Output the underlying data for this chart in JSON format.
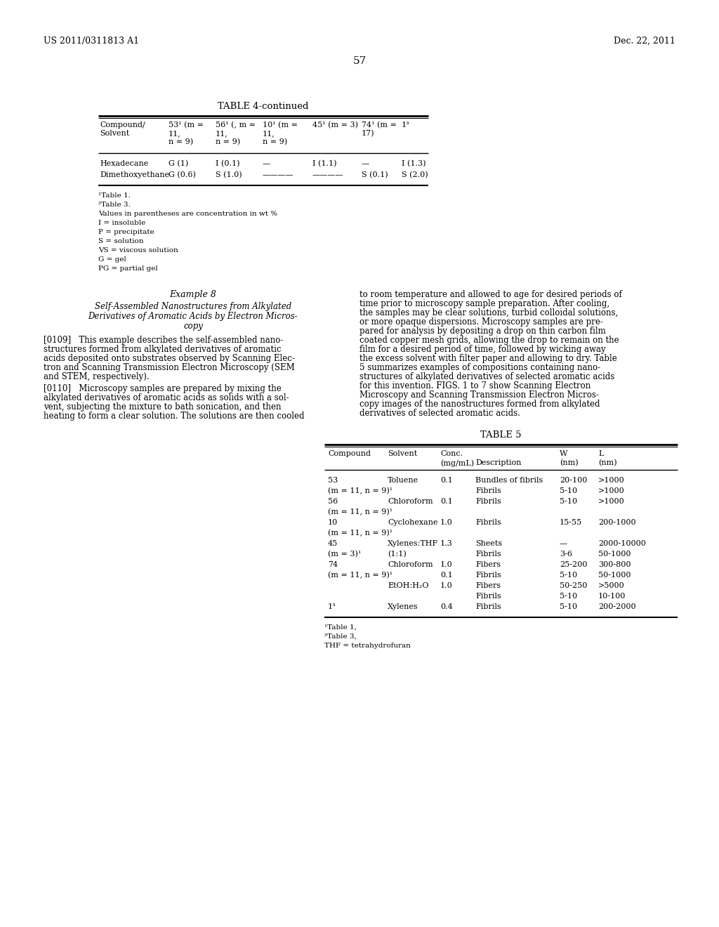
{
  "page_header_left": "US 2011/0311813 A1",
  "page_header_right": "Dec. 22, 2011",
  "page_number": "57",
  "table4_title": "TABLE 4-continued",
  "table4_footnotes": [
    "¹Table 1.",
    "³Table 3.",
    "Values in parentheses are concentration in wt %",
    "I = insoluble",
    "P = precipitate",
    "S = solution",
    "VS = viscous solution",
    "G = gel",
    "PG = partial gel"
  ],
  "example8_title": "Example 8",
  "example8_subtitle_lines": [
    "Self-Assembled Nanostructures from Alkylated",
    "Derivatives of Aromatic Acids by Electron Micros-",
    "copy"
  ],
  "para109_lines": [
    "[0109]   This example describes the self-assembled nano-",
    "structures formed from alkylated derivatives of aromatic",
    "acids deposited onto substrates observed by Scanning Elec-",
    "tron and Scanning Transmission Electron Microscopy (SEM",
    "and STEM, respectively)."
  ],
  "para110_lines": [
    "[0110]   Microscopy samples are prepared by mixing the",
    "alkylated derivatives of aromatic acids as solids with a sol-",
    "vent, subjecting the mixture to bath sonication, and then",
    "heating to form a clear solution. The solutions are then cooled"
  ],
  "right_col_lines": [
    "to room temperature and allowed to age for desired periods of",
    "time prior to microscopy sample preparation. After cooling,",
    "the samples may be clear solutions, turbid colloidal solutions,",
    "or more opaque dispersions. Microscopy samples are pre-",
    "pared for analysis by depositing a drop on thin carbon film",
    "coated copper mesh grids, allowing the drop to remain on the",
    "film for a desired period of time, followed by wicking away",
    "the excess solvent with filter paper and allowing to dry. Table",
    "5 summarizes examples of compositions containing nano-",
    "structures of alkylated derivatives of selected aromatic acids",
    "for this invention. FIGS. 1 to 7 show Scanning Electron",
    "Microscopy and Scanning Transmission Electron Micros-",
    "copy images of the nanostructures formed from alkylated",
    "derivatives of selected aromatic acids."
  ],
  "table5_title": "TABLE 5",
  "table5_rows": [
    [
      "53",
      "Toluene",
      "0.1",
      "Bundles of fibrils",
      "20-100",
      ">1000"
    ],
    [
      "(m = 11, n = 9)¹",
      "",
      "",
      "Fibrils",
      "5-10",
      ">1000"
    ],
    [
      "56",
      "Chloroform",
      "0.1",
      "Fibrils",
      "5-10",
      ">1000"
    ],
    [
      "(m = 11, n = 9)¹",
      "",
      "",
      "",
      "",
      ""
    ],
    [
      "10",
      "Cyclohexane",
      "1.0",
      "Fibrils",
      "15-55",
      "200-1000"
    ],
    [
      "(m = 11, n = 9)¹",
      "",
      "",
      "",
      "",
      ""
    ],
    [
      "45",
      "Xylenes:THF",
      "1.3",
      "Sheets",
      "—",
      "2000-10000"
    ],
    [
      "(m = 3)¹",
      "(1:1)",
      "",
      "Fibrils",
      "3-6",
      "50-1000"
    ],
    [
      "74",
      "Chloroform",
      "1.0",
      "Fibers",
      "25-200",
      "300-800"
    ],
    [
      "(m = 11, n = 9)¹",
      "",
      "0.1",
      "Fibrils",
      "5-10",
      "50-1000"
    ],
    [
      "",
      "EtOH:H₂O",
      "1.0",
      "Fibers",
      "50-250",
      ">5000"
    ],
    [
      "",
      "",
      "",
      "Fibrils",
      "5-10",
      "10-100"
    ],
    [
      "1³",
      "Xylenes",
      "0.4",
      "Fibrils",
      "5-10",
      "200-2000"
    ]
  ],
  "table5_footnotes": [
    "¹Table 1,",
    "³Table 3,",
    "THF = tetrahydrofuran"
  ],
  "bg_color": "#ffffff"
}
